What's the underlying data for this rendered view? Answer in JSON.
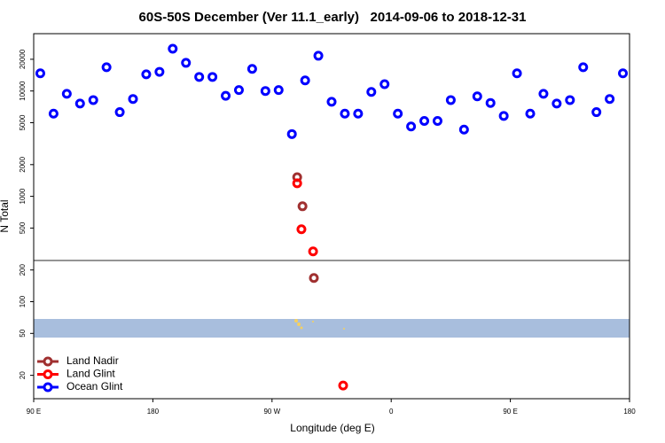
{
  "chart_data": {
    "type": "scatter",
    "title": "60S-50S December (Ver 11.1_early)   2014-09-06 to 2018-12-31",
    "x_label": "Longitude (deg E)",
    "y_label": "N Total",
    "xlim": [
      90,
      540
    ],
    "xticks": [
      {
        "value": 90,
        "label": "90 E"
      },
      {
        "value": 180,
        "label": "180"
      },
      {
        "value": 270,
        "label": "90 W"
      },
      {
        "value": 360,
        "label": "0"
      },
      {
        "value": 450,
        "label": "90 E"
      },
      {
        "value": 540,
        "label": "180"
      }
    ],
    "ylim": [
      12,
      35000
    ],
    "ylog": true,
    "yticks": [
      20,
      50,
      100,
      200,
      500,
      1000,
      2000,
      5000,
      10000,
      20000
    ],
    "legend": "bottom-left",
    "series": [
      {
        "name": "Land Nadir",
        "color": "#a03030",
        "x": [
          289,
          293,
          301.6
        ],
        "values": [
          1520,
          805,
          168
        ]
      },
      {
        "name": "Land Glint",
        "color": "#ff0000",
        "x": [
          289,
          292.2,
          301,
          323.7
        ],
        "values": [
          1330,
          487,
          300,
          16
        ]
      },
      {
        "name": "Ocean Glint",
        "color": "#0000ff",
        "x": [
          95,
          105,
          115,
          125,
          135,
          145,
          155,
          165,
          175,
          185,
          195,
          205,
          215,
          225,
          235,
          245,
          255,
          265,
          275,
          285,
          295,
          305,
          315,
          325,
          335,
          345,
          355,
          365,
          375,
          385,
          395,
          405,
          415,
          425,
          435,
          445,
          455,
          465,
          475,
          485,
          495,
          505,
          515,
          525,
          535
        ],
        "values": [
          14700,
          6100,
          9400,
          7600,
          8200,
          16800,
          6300,
          8400,
          14400,
          15200,
          25200,
          18500,
          13600,
          13600,
          9000,
          10200,
          16200,
          10000,
          10200,
          3900,
          12600,
          21600,
          7900,
          6100,
          6100,
          9800,
          11600,
          6100,
          4600,
          5200,
          5200,
          8200,
          4300,
          8900,
          7700,
          5800,
          14700,
          6100,
          9400,
          7600,
          8200,
          16800,
          6300,
          8400,
          14700
        ]
      }
    ]
  }
}
